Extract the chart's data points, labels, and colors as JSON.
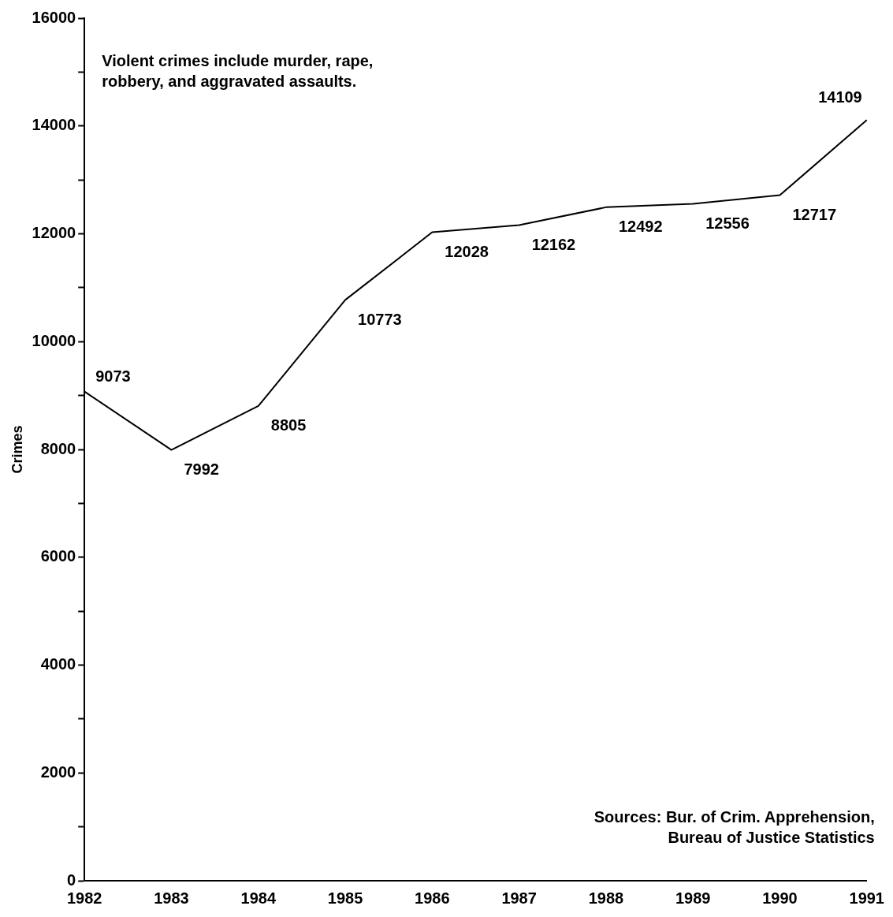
{
  "chart_data": {
    "type": "line",
    "ylabel": "Crimes",
    "categories": [
      "1982",
      "1983",
      "1984",
      "1985",
      "1986",
      "1987",
      "1988",
      "1989",
      "1990",
      "1991"
    ],
    "series": [
      {
        "color": "#000000",
        "values": [
          9073,
          7992,
          8805,
          10773,
          12028,
          12162,
          12492,
          12556,
          12717,
          14109
        ]
      }
    ],
    "ylim": [
      0,
      16000
    ],
    "yticks": [
      0,
      {
        "value": 1000,
        "label": null
      },
      2000,
      {
        "value": 3000,
        "label": null
      },
      4000,
      {
        "value": 5000,
        "label": null
      },
      6000,
      {
        "value": 7000,
        "label": null
      },
      8000,
      {
        "value": 9000,
        "label": null
      },
      10000,
      {
        "value": 11000,
        "label": null
      },
      12000,
      {
        "value": 13000,
        "label": null
      },
      14000,
      {
        "value": 15000,
        "label": null
      },
      16000
    ],
    "grid": false,
    "legend": false,
    "marker": "none",
    "line_style": "solid",
    "data_labels": true,
    "annotations": [
      "Violent crimes include murder, rape,\nrobbery, and aggravated assaults.",
      "Sources: Bur. of Crim. Apprehension,\nBureau of Justice Statistics"
    ]
  }
}
